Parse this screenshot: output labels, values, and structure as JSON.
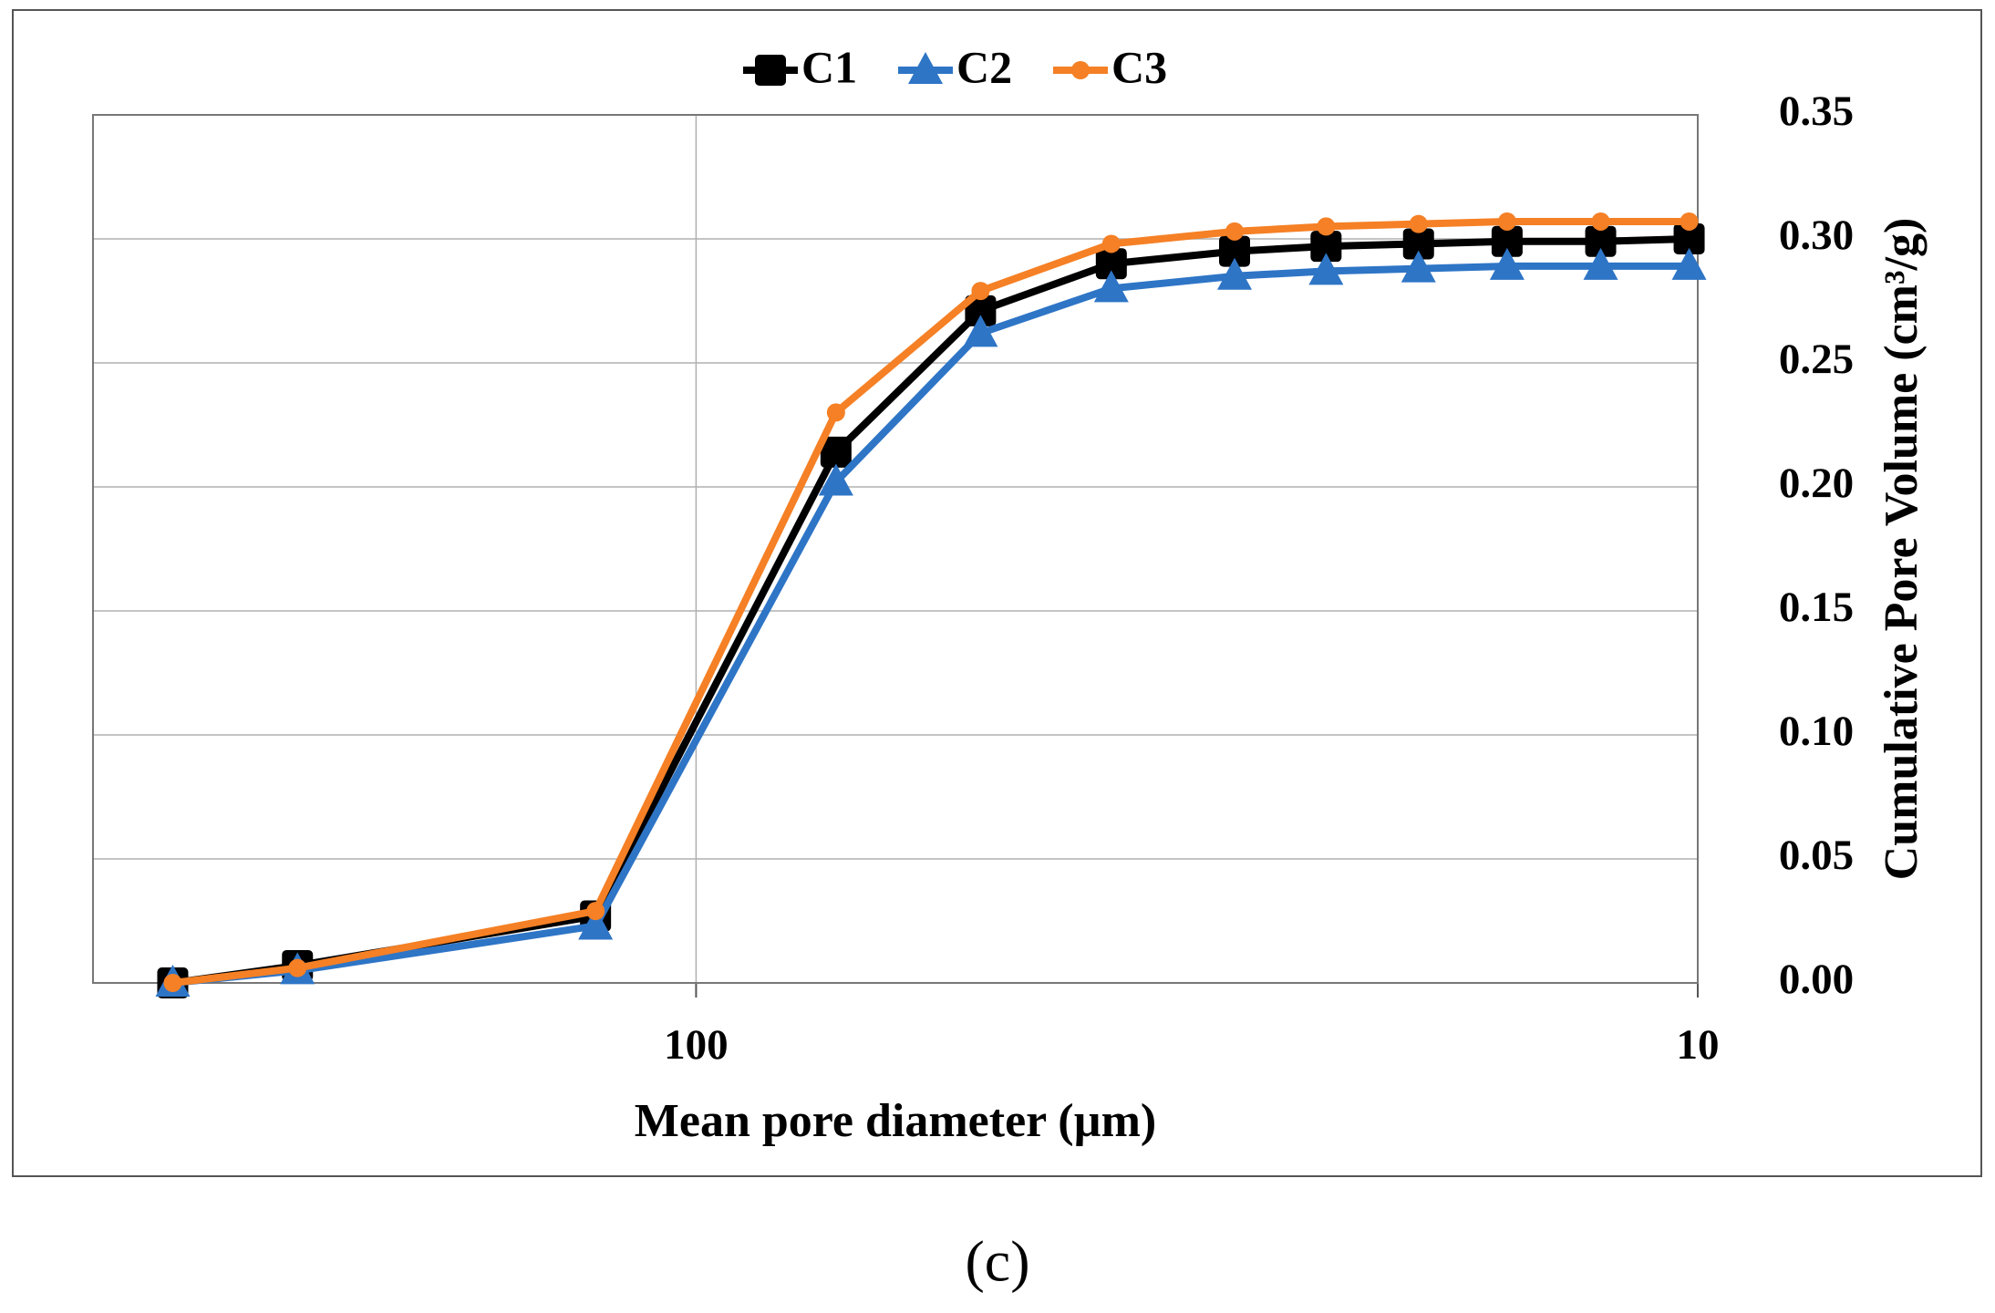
{
  "chart_data": {
    "type": "line",
    "caption": "(c)",
    "x_label": "Mean pore diameter (µm)",
    "y_label": "Cumulative Pore Volume (cm³/g)",
    "x_scale": "log",
    "x": [
      333,
      250,
      126,
      72.5,
      52,
      38.5,
      29,
      23.5,
      19,
      15.5,
      12.5,
      10.2
    ],
    "series": [
      {
        "name": "C1",
        "color": "#000000",
        "marker": "square",
        "values": [
          0,
          0.007,
          0.027,
          0.214,
          0.271,
          0.29,
          0.295,
          0.297,
          0.298,
          0.299,
          0.299,
          0.3
        ]
      },
      {
        "name": "C2",
        "color": "#2e75c6",
        "marker": "triangle",
        "values": [
          0,
          0.005,
          0.023,
          0.202,
          0.262,
          0.28,
          0.285,
          0.287,
          0.288,
          0.289,
          0.289,
          0.289
        ]
      },
      {
        "name": "C3",
        "color": "#f58025",
        "marker": "circle",
        "values": [
          0,
          0.006,
          0.029,
          0.23,
          0.279,
          0.298,
          0.303,
          0.305,
          0.306,
          0.307,
          0.307,
          0.307
        ]
      }
    ],
    "xlim": [
      400,
      10
    ],
    "xticks": [
      100,
      10
    ],
    "ylim": [
      0,
      0.35
    ],
    "yticks": [
      {
        "value": 0,
        "label": "0.00"
      },
      {
        "value": 0.05,
        "label": "0.05"
      },
      {
        "value": 0.1,
        "label": "0.10"
      },
      {
        "value": 0.15,
        "label": "0.15"
      },
      {
        "value": 0.2,
        "label": "0.20"
      },
      {
        "value": 0.25,
        "label": "0.25"
      },
      {
        "value": 0.3,
        "label": "0.30"
      },
      {
        "value": 0.35,
        "label": "0.35"
      }
    ],
    "y_axis_side": "right",
    "grid": true,
    "legend_position": "top"
  }
}
